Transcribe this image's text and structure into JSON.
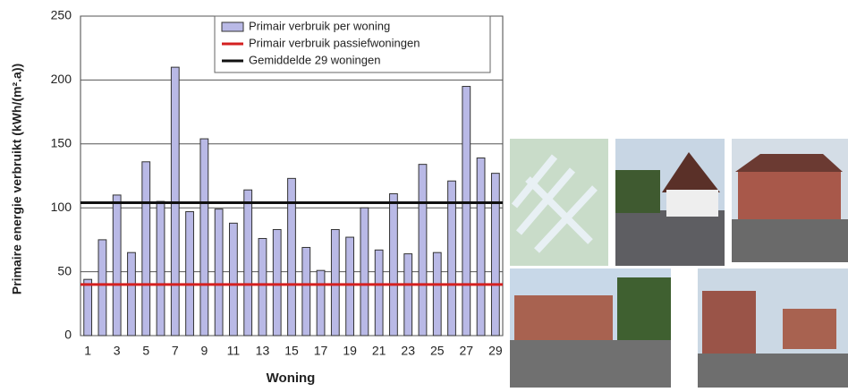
{
  "chart_data": {
    "type": "bar",
    "y_label": "Primaire energie verbruikt (kWh/(m².a))",
    "x_label": "Woning",
    "categories": [
      "1",
      null,
      "3",
      null,
      "5",
      null,
      "7",
      null,
      "9",
      null,
      "11",
      null,
      "13",
      null,
      "15",
      null,
      "17",
      null,
      "19",
      null,
      "21",
      null,
      "23",
      null,
      "25",
      null,
      "27",
      null,
      "29"
    ],
    "series": [
      {
        "name": "Primair verbruik per woning",
        "color": "#b9b9e6",
        "values": [
          44,
          75,
          110,
          65,
          136,
          105,
          210,
          97,
          154,
          99,
          88,
          114,
          76,
          83,
          123,
          69,
          51,
          83,
          77,
          100,
          67,
          111,
          64,
          134,
          65,
          121,
          195,
          139,
          127
        ]
      }
    ],
    "hlines": [
      {
        "name": "Primair verbruik passiefwoningen",
        "color": "#d42020",
        "value": 40
      },
      {
        "name": "Gemiddelde 29 woningen",
        "color": "#111111",
        "value": 104
      }
    ],
    "ylim": [
      0,
      250
    ],
    "yticks": [
      0,
      50,
      100,
      150,
      200,
      250
    ],
    "grid": true
  }
}
